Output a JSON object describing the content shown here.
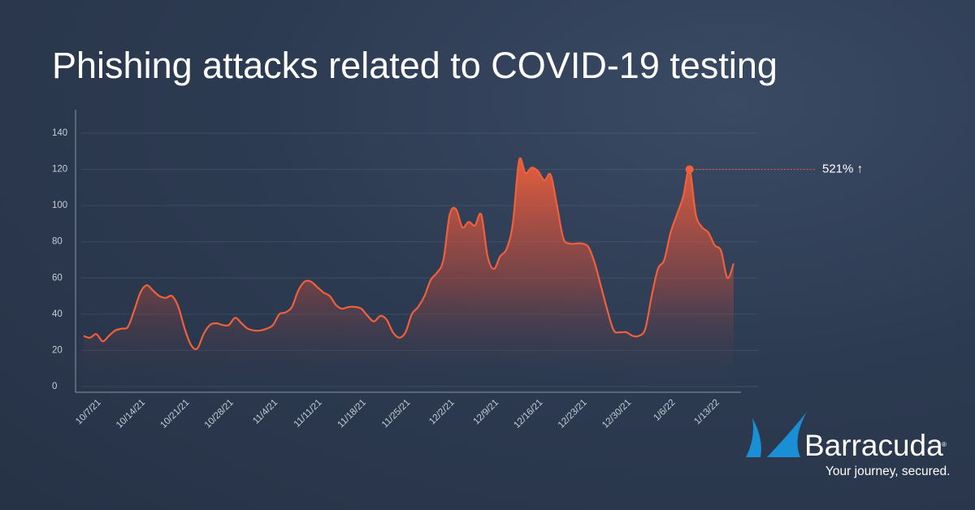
{
  "chart_data": {
    "type": "line",
    "title": "Phishing attacks related to COVID-19 testing",
    "annotation": "521% ↑",
    "color": "#f0603c",
    "grid": true,
    "ylim": [
      0,
      140
    ],
    "yticks": [
      0,
      20,
      40,
      60,
      80,
      100,
      120,
      140
    ],
    "categories": [
      null,
      null,
      "10/7/21",
      null,
      null,
      null,
      null,
      null,
      null,
      "10/14/21",
      null,
      null,
      null,
      null,
      null,
      null,
      "10/21/21",
      null,
      null,
      null,
      null,
      null,
      null,
      "10/28/21",
      null,
      null,
      null,
      null,
      null,
      null,
      "11/4/21",
      null,
      null,
      null,
      null,
      null,
      null,
      "11/11/21",
      null,
      null,
      null,
      null,
      null,
      null,
      "11/18/21",
      null,
      null,
      null,
      null,
      null,
      null,
      "11/25/21",
      null,
      null,
      null,
      null,
      null,
      null,
      "12/2/21",
      null,
      null,
      null,
      null,
      null,
      null,
      "12/9/21",
      null,
      null,
      null,
      null,
      null,
      null,
      "12/16/21",
      null,
      null,
      null,
      null,
      null,
      null,
      "12/23/21",
      null,
      null,
      null,
      null,
      null,
      null,
      "12/30/21",
      null,
      null,
      null,
      null,
      null,
      null,
      "1/6/22",
      null,
      null,
      null,
      null,
      null,
      null,
      "1/13/22",
      null,
      null,
      null
    ],
    "values": [
      28,
      27,
      29,
      25,
      28,
      31,
      32,
      33,
      42,
      52,
      56,
      53,
      50,
      49,
      50,
      44,
      32,
      23,
      21,
      29,
      34,
      35,
      34,
      34,
      38,
      35,
      32,
      31,
      31,
      32,
      34,
      40,
      41,
      44,
      53,
      58,
      58,
      55,
      52,
      50,
      45,
      43,
      44,
      44,
      43,
      39,
      36,
      39,
      37,
      30,
      27,
      30,
      40,
      44,
      50,
      59,
      63,
      70,
      95,
      98,
      88,
      91,
      89,
      95,
      72,
      65,
      72,
      76,
      90,
      125,
      118,
      121,
      119,
      114,
      117,
      100,
      82,
      79,
      79,
      79,
      77,
      68,
      55,
      42,
      31,
      30,
      30,
      28,
      28,
      32,
      50,
      65,
      70,
      85,
      95,
      105,
      120,
      95,
      88,
      85,
      78,
      75,
      60,
      68
    ]
  },
  "logo": {
    "name": "Barracuda",
    "mark": "®",
    "tagline": "Your journey, secured."
  }
}
